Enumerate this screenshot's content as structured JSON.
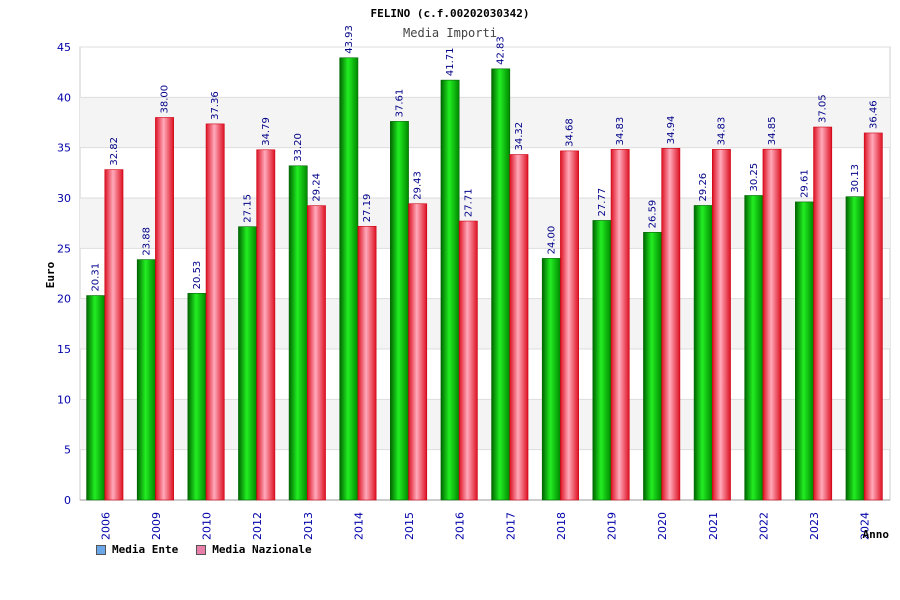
{
  "chart_data": {
    "type": "bar",
    "title": "FELINO (c.f.00202030342)",
    "subtitle": "Media Importi",
    "xlabel": "Anno",
    "ylabel": "Euro",
    "ylim": [
      0,
      45
    ],
    "yticks": [
      "0",
      "5",
      "10",
      "15",
      "20",
      "25",
      "30",
      "35",
      "40",
      "45"
    ],
    "grid": true,
    "legend_position": "bottom-left",
    "categories": [
      "2006",
      "2009",
      "2010",
      "2012",
      "2013",
      "2014",
      "2015",
      "2016",
      "2017",
      "2018",
      "2019",
      "2020",
      "2021",
      "2022",
      "2023",
      "2024"
    ],
    "series": [
      {
        "name": "Media Ente",
        "color": "#00b000",
        "values": [
          20.31,
          23.88,
          20.53,
          27.15,
          33.2,
          43.93,
          37.61,
          41.71,
          42.83,
          24.0,
          27.77,
          26.59,
          29.26,
          30.25,
          29.61,
          30.13
        ],
        "labels": [
          "20.31",
          "23.88",
          "20.53",
          "27.15",
          "33.20",
          "43.93",
          "37.61",
          "41.71",
          "42.83",
          "24.00",
          "27.77",
          "26.59",
          "29.26",
          "30.25",
          "29.61",
          "30.13"
        ]
      },
      {
        "name": "Media Nazionale",
        "color": "#e0202a",
        "values": [
          32.82,
          38.0,
          37.36,
          34.79,
          29.24,
          27.19,
          29.43,
          27.71,
          34.32,
          34.68,
          34.83,
          34.94,
          34.83,
          34.85,
          37.05,
          36.46
        ],
        "labels": [
          "32.82",
          "38.00",
          "37.36",
          "34.79",
          "29.24",
          "27.19",
          "29.43",
          "27.71",
          "34.32",
          "34.68",
          "34.83",
          "34.94",
          "34.83",
          "34.85",
          "37.05",
          "36.46"
        ]
      }
    ]
  },
  "legend": {
    "items": [
      {
        "label": "Media Ente",
        "color": "#6aa6e8"
      },
      {
        "label": "Media Nazionale",
        "color": "#e87fa8"
      }
    ]
  }
}
